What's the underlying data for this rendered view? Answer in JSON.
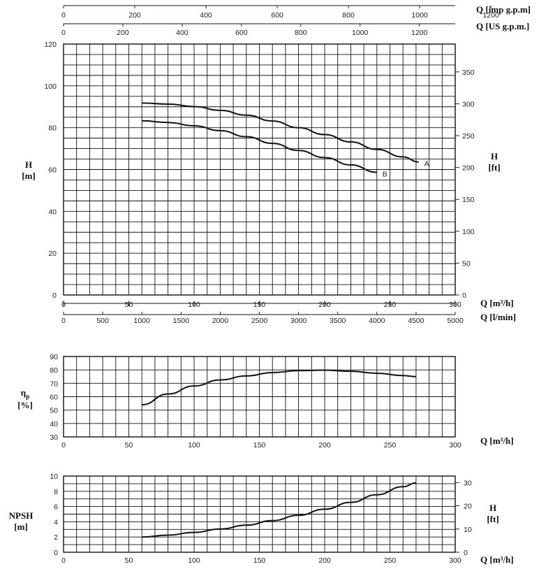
{
  "chart_data": [
    {
      "type": "line",
      "ylabel": "H\n[m]",
      "y2label": "H\n[ft]",
      "xlabel": "Q [m³/h]",
      "xlabel2": "Q [l/min]",
      "top_axis1_label": "Q [imp g.p.m]",
      "top_axis2_label": "Q [US g.p.m.]",
      "xlim": [
        0,
        300
      ],
      "ylim": [
        0,
        120
      ],
      "x_ticks": [
        0,
        50,
        100,
        150,
        200,
        250,
        300
      ],
      "y_ticks": [
        0,
        20,
        40,
        60,
        80,
        100,
        120
      ],
      "y2_ticks": [
        0,
        50,
        100,
        150,
        200,
        250,
        300,
        350
      ],
      "lmin_ticks": [
        0,
        500,
        1000,
        1500,
        2000,
        2500,
        3000,
        3500,
        4000,
        4500,
        5000
      ],
      "imp_ticks": [
        0,
        200,
        400,
        600,
        800,
        1000,
        1200
      ],
      "us_ticks": [
        0,
        200,
        400,
        600,
        800,
        1000,
        1200
      ],
      "grid": true,
      "series": [
        {
          "name": "A",
          "x": [
            60,
            80,
            100,
            120,
            140,
            160,
            180,
            200,
            220,
            240,
            260,
            272
          ],
          "y": [
            91.8,
            91.3,
            90.1,
            88.3,
            86,
            83.2,
            80,
            76.7,
            73.2,
            69.6,
            66,
            63.6
          ]
        },
        {
          "name": "B",
          "x": [
            60,
            80,
            100,
            120,
            140,
            160,
            180,
            200,
            220,
            240
          ],
          "y": [
            83.3,
            82.5,
            80.9,
            78.6,
            75.7,
            72.5,
            69.1,
            65.7,
            62.2,
            58.7
          ]
        }
      ]
    },
    {
      "type": "line",
      "ylabel": "ηp\n[%]",
      "xlabel": "Q [m³/h]",
      "xlim": [
        0,
        300
      ],
      "ylim": [
        30,
        90
      ],
      "x_ticks": [
        0,
        50,
        100,
        150,
        200,
        250,
        300
      ],
      "y_ticks": [
        30,
        40,
        50,
        60,
        70,
        80,
        90
      ],
      "grid": true,
      "series": [
        {
          "x": [
            60,
            80,
            100,
            120,
            140,
            160,
            180,
            200,
            220,
            240,
            260,
            270
          ],
          "y": [
            54,
            62,
            68,
            72.5,
            75.5,
            78,
            79.5,
            79.8,
            79,
            77.5,
            75.8,
            75
          ]
        }
      ]
    },
    {
      "type": "line",
      "ylabel": "NPSH\n[m]",
      "y2label": "H\n[ft]",
      "xlabel": "Q [m³/h]",
      "xlim": [
        0,
        300
      ],
      "ylim": [
        0,
        10
      ],
      "x_ticks": [
        0,
        50,
        100,
        150,
        200,
        250,
        300
      ],
      "y_ticks": [
        0,
        2,
        4,
        6,
        8,
        10
      ],
      "y2_ticks": [
        0,
        10,
        20,
        30
      ],
      "grid": true,
      "series": [
        {
          "x": [
            60,
            80,
            100,
            120,
            140,
            160,
            180,
            200,
            220,
            240,
            260,
            270
          ],
          "y": [
            2,
            2.25,
            2.6,
            3.05,
            3.55,
            4.15,
            4.85,
            5.65,
            6.55,
            7.55,
            8.6,
            9.1
          ]
        }
      ]
    }
  ]
}
